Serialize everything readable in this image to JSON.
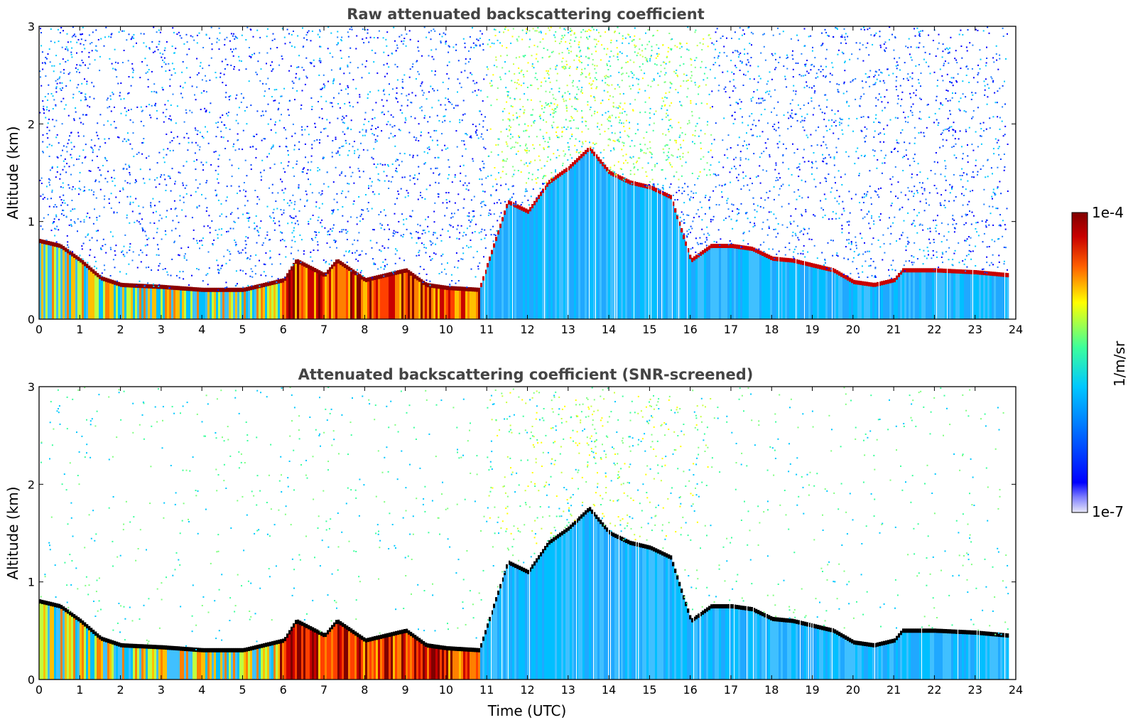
{
  "chart_data": [
    {
      "type": "heatmap",
      "title": "Raw attenuated backscattering coefficient",
      "xlabel": "",
      "ylabel": "Altitude (km)",
      "xlim": [
        0,
        24
      ],
      "ylim": [
        0,
        3
      ],
      "xticks": [
        "0",
        "1",
        "2",
        "3",
        "4",
        "5",
        "6",
        "7",
        "8",
        "9",
        "10",
        "11",
        "12",
        "13",
        "14",
        "15",
        "16",
        "17",
        "18",
        "19",
        "20",
        "21",
        "22",
        "23",
        "24"
      ],
      "yticks": [
        "0",
        "1",
        "2",
        "3"
      ],
      "layer_top_km": [
        [
          0.0,
          0.8
        ],
        [
          0.5,
          0.75
        ],
        [
          1.0,
          0.6
        ],
        [
          1.5,
          0.42
        ],
        [
          2.0,
          0.35
        ],
        [
          3.0,
          0.33
        ],
        [
          4.0,
          0.3
        ],
        [
          5.0,
          0.3
        ],
        [
          6.0,
          0.4
        ],
        [
          6.3,
          0.6
        ],
        [
          7.0,
          0.45
        ],
        [
          7.3,
          0.6
        ],
        [
          8.0,
          0.4
        ],
        [
          9.0,
          0.5
        ],
        [
          9.5,
          0.35
        ],
        [
          10.0,
          0.32
        ],
        [
          10.8,
          0.3
        ],
        [
          11.5,
          1.2
        ],
        [
          12.0,
          1.1
        ],
        [
          12.5,
          1.4
        ],
        [
          13.0,
          1.55
        ],
        [
          13.5,
          1.75
        ],
        [
          14.0,
          1.5
        ],
        [
          14.5,
          1.4
        ],
        [
          15.0,
          1.35
        ],
        [
          15.5,
          1.25
        ],
        [
          16.0,
          0.6
        ],
        [
          16.5,
          0.75
        ],
        [
          17.0,
          0.75
        ],
        [
          17.5,
          0.72
        ],
        [
          18.0,
          0.62
        ],
        [
          18.5,
          0.6
        ],
        [
          19.0,
          0.55
        ],
        [
          19.5,
          0.5
        ],
        [
          20.0,
          0.38
        ],
        [
          20.5,
          0.35
        ],
        [
          21.0,
          0.4
        ],
        [
          21.2,
          0.5
        ],
        [
          22.0,
          0.5
        ],
        [
          23.0,
          0.48
        ],
        [
          23.8,
          0.45
        ]
      ]
    },
    {
      "type": "heatmap",
      "title": "Attenuated backscattering coefficient (SNR-screened)",
      "xlabel": "Time (UTC)",
      "ylabel": "Altitude (km)",
      "xlim": [
        0,
        24
      ],
      "ylim": [
        0,
        3
      ],
      "xticks": [
        "0",
        "1",
        "2",
        "3",
        "4",
        "5",
        "6",
        "7",
        "8",
        "9",
        "10",
        "11",
        "12",
        "13",
        "14",
        "15",
        "16",
        "17",
        "18",
        "19",
        "20",
        "21",
        "22",
        "23",
        "24"
      ],
      "yticks": [
        "0",
        "1",
        "2",
        "3"
      ],
      "layer_top_km": [
        [
          0.0,
          0.8
        ],
        [
          0.5,
          0.75
        ],
        [
          1.0,
          0.6
        ],
        [
          1.5,
          0.42
        ],
        [
          2.0,
          0.35
        ],
        [
          3.0,
          0.33
        ],
        [
          4.0,
          0.3
        ],
        [
          5.0,
          0.3
        ],
        [
          6.0,
          0.4
        ],
        [
          6.3,
          0.6
        ],
        [
          7.0,
          0.45
        ],
        [
          7.3,
          0.6
        ],
        [
          8.0,
          0.4
        ],
        [
          9.0,
          0.5
        ],
        [
          9.5,
          0.35
        ],
        [
          10.0,
          0.32
        ],
        [
          10.8,
          0.3
        ],
        [
          11.5,
          1.2
        ],
        [
          12.0,
          1.1
        ],
        [
          12.5,
          1.4
        ],
        [
          13.0,
          1.55
        ],
        [
          13.5,
          1.75
        ],
        [
          14.0,
          1.5
        ],
        [
          14.5,
          1.4
        ],
        [
          15.0,
          1.35
        ],
        [
          15.5,
          1.25
        ],
        [
          16.0,
          0.6
        ],
        [
          16.5,
          0.75
        ],
        [
          17.0,
          0.75
        ],
        [
          17.5,
          0.72
        ],
        [
          18.0,
          0.62
        ],
        [
          18.5,
          0.6
        ],
        [
          19.0,
          0.55
        ],
        [
          19.5,
          0.5
        ],
        [
          20.0,
          0.38
        ],
        [
          20.5,
          0.35
        ],
        [
          21.0,
          0.4
        ],
        [
          21.2,
          0.5
        ],
        [
          22.0,
          0.5
        ],
        [
          23.0,
          0.48
        ],
        [
          23.8,
          0.45
        ]
      ]
    }
  ],
  "colorbar": {
    "label": "1/m/sr",
    "max_label": "1e-4",
    "min_label": "1e-7",
    "scale": "log",
    "colors": [
      "#e8e8f8",
      "#0000ff",
      "#00c8ff",
      "#3cff9c",
      "#ffff00",
      "#ff6000",
      "#c80000",
      "#800000"
    ]
  },
  "palette": {
    "haze": [
      "#00c8ff",
      "#3cff9c",
      "#80ff80",
      "#c8ff40",
      "#ffff00"
    ],
    "noise": [
      "#0000ff",
      "#0040ff",
      "#2080ff",
      "#00c8ff"
    ],
    "aerosol": [
      "#00bfff",
      "#40c0ff",
      "#20a8ff"
    ],
    "strong": [
      "#ff4000",
      "#ff8000",
      "#ffc000",
      "#c80000",
      "#800000"
    ],
    "layer_edge_raw": "#8b0000",
    "layer_edge_screened": "#000000"
  }
}
